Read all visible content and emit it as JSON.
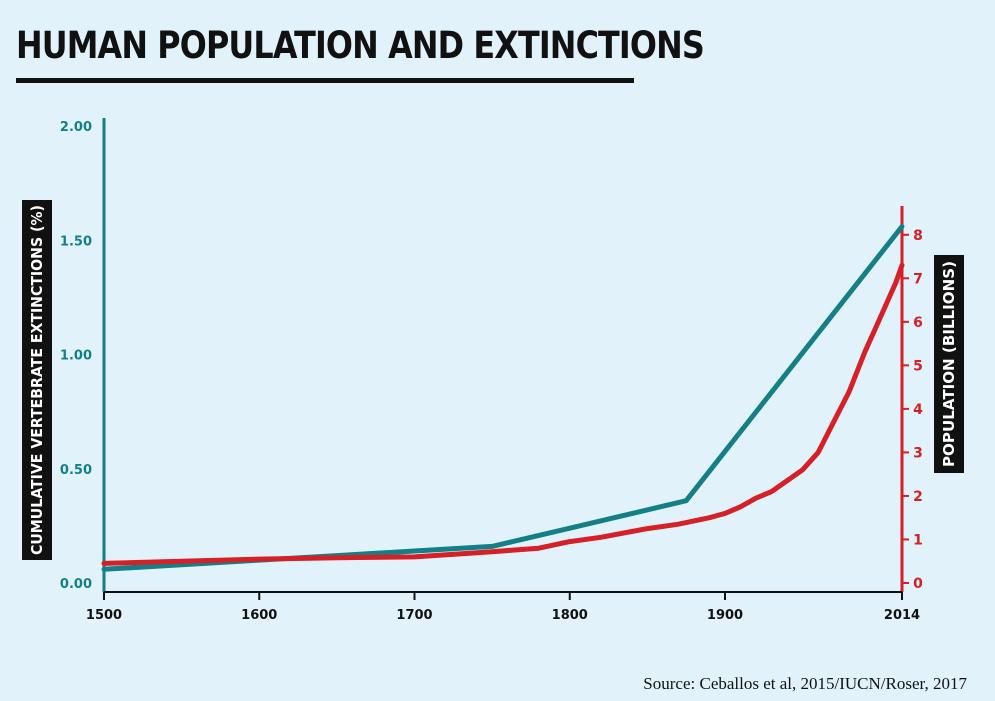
{
  "title": "HUMAN POPULATION AND EXTINCTIONS",
  "source": "Source: Ceballos et al, 2015/IUCN/Roser, 2017",
  "colors": {
    "extinctions": "#157f86",
    "population": "#d42026",
    "background": "#e2f2fb"
  },
  "chart_data": {
    "type": "line",
    "title": "HUMAN POPULATION AND EXTINCTIONS",
    "x_ticks": [
      1500,
      1600,
      1700,
      1800,
      1900,
      2014
    ],
    "x_tick_labels": [
      "1500",
      "1600",
      "1700",
      "1800",
      "1900",
      "2014"
    ],
    "xlim": [
      1500,
      2014
    ],
    "y_left": {
      "label": "CUMULATIVE VERTEBRATE EXTINCTIONS (%)",
      "ticks": [
        0,
        0.5,
        1.0,
        1.5,
        2.0
      ],
      "tick_labels": [
        "0.00",
        "0.50",
        "1.00",
        "1.50",
        "2.00"
      ],
      "lim": [
        0,
        2.0
      ]
    },
    "y_right": {
      "label": "POPULATION (BILLIONS)",
      "ticks": [
        0,
        1,
        2,
        3,
        4,
        5,
        6,
        7,
        8
      ],
      "tick_labels": [
        "0",
        "1",
        "2",
        "3",
        "4",
        "5",
        "6",
        "7",
        "8"
      ],
      "lim": [
        0,
        8.5
      ]
    },
    "grid": false,
    "series": [
      {
        "axis": "left",
        "x": [
          1500,
          1550,
          1600,
          1650,
          1700,
          1750,
          1800,
          1875,
          2014
        ],
        "y": [
          0.06,
          0.08,
          0.1,
          0.12,
          0.14,
          0.16,
          0.24,
          0.36,
          1.56
        ]
      },
      {
        "axis": "right",
        "x": [
          1500,
          1550,
          1600,
          1650,
          1700,
          1750,
          1780,
          1800,
          1820,
          1850,
          1870,
          1890,
          1900,
          1910,
          1920,
          1930,
          1940,
          1950,
          1960,
          1970,
          1980,
          1990,
          2000,
          2010,
          2014
        ],
        "y": [
          0.45,
          0.5,
          0.55,
          0.58,
          0.6,
          0.72,
          0.8,
          0.95,
          1.05,
          1.25,
          1.35,
          1.5,
          1.6,
          1.75,
          1.95,
          2.1,
          2.35,
          2.6,
          3.0,
          3.7,
          4.4,
          5.3,
          6.1,
          6.9,
          7.3
        ]
      }
    ]
  }
}
